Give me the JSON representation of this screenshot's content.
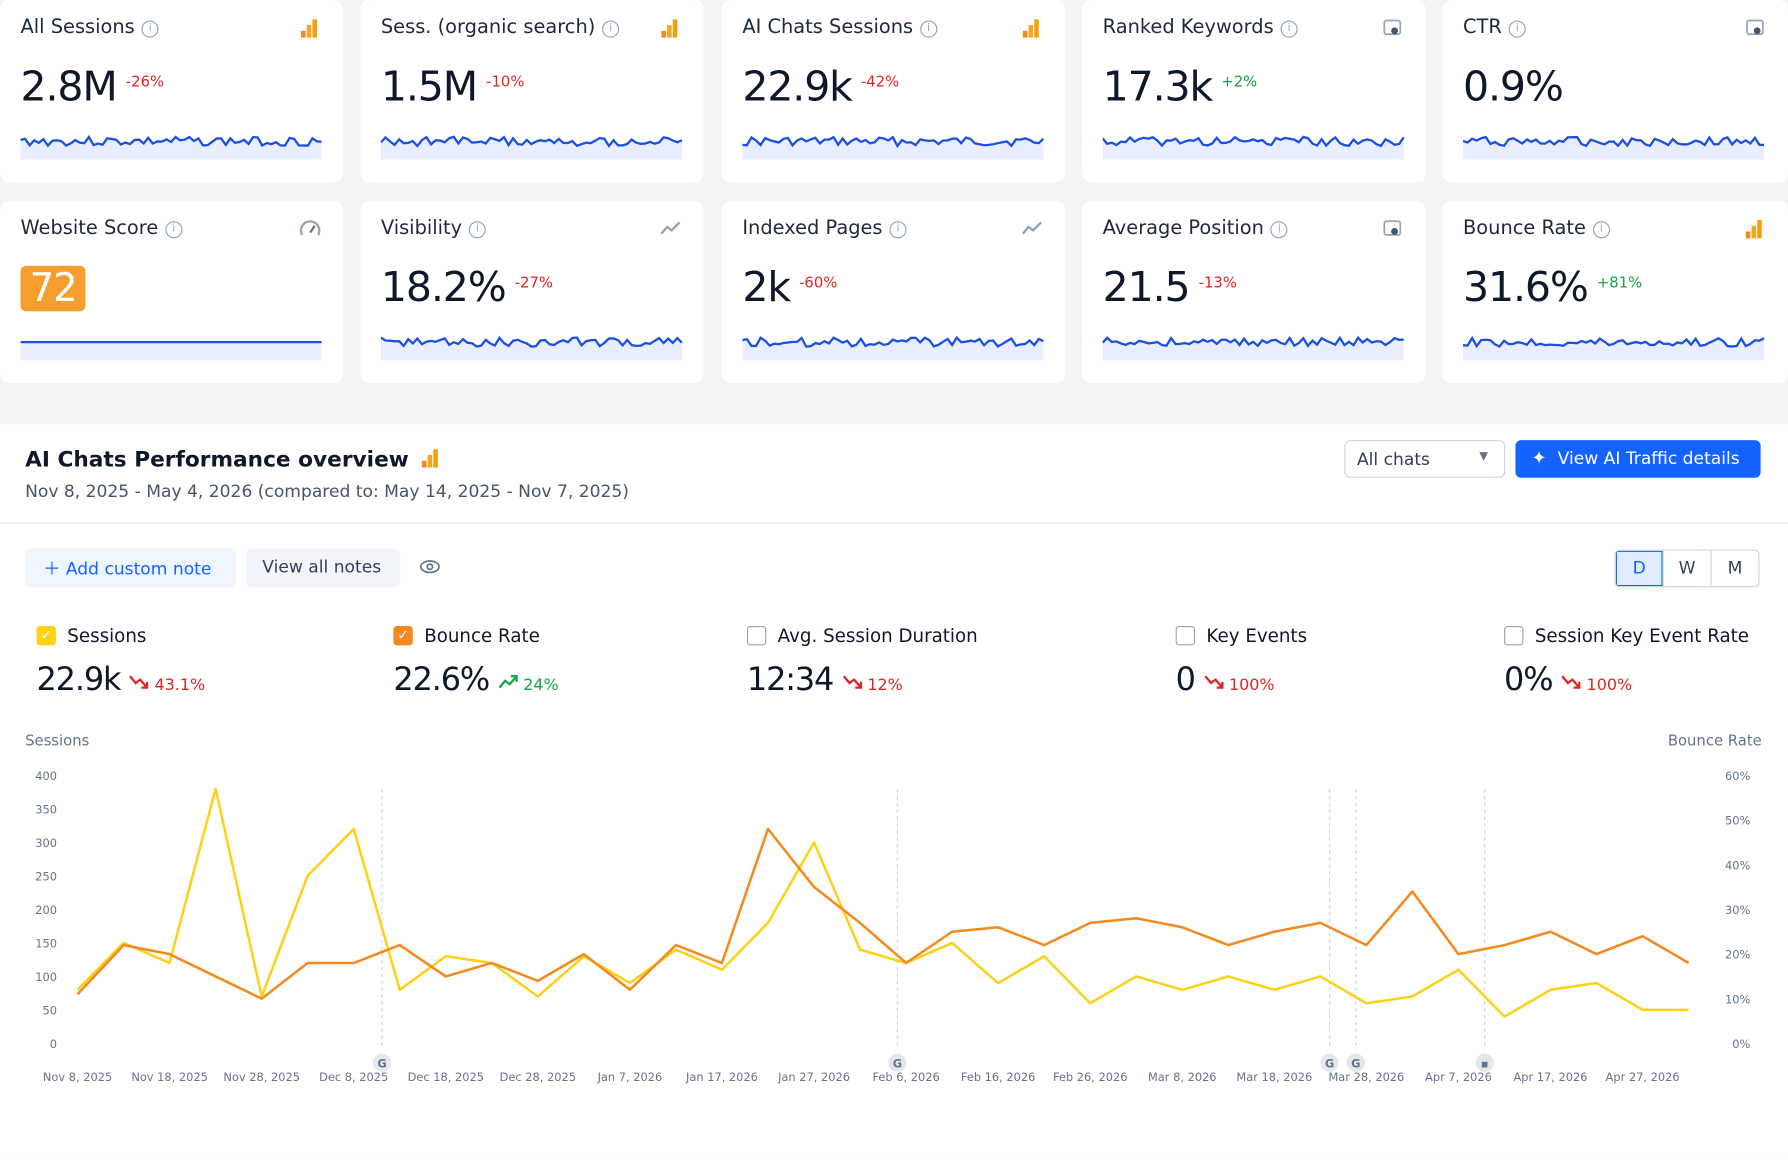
{
  "metric_cards": [
    {
      "title": "All Sessions",
      "value": "2.8M",
      "change": "-26%",
      "icon": "bars"
    },
    {
      "title": "Sess. (organic search)",
      "value": "1.5M",
      "change": "-10%",
      "icon": "bars"
    },
    {
      "title": "AI Chats Sessions",
      "value": "22.9k",
      "change": "-42%",
      "icon": "bars"
    },
    {
      "title": "Ranked Keywords",
      "value": "17.3k",
      "change": "+2%",
      "icon": "gsc"
    },
    {
      "title": "CTR",
      "value": "0.9%",
      "icon": "gsc"
    },
    {
      "title": "Website Score",
      "value": "72",
      "badge": true,
      "icon": "gauge"
    },
    {
      "title": "Visibility",
      "value": "18.2%",
      "change": "-27%",
      "icon": "trend"
    },
    {
      "title": "Indexed Pages",
      "value": "2k",
      "change": "-60%",
      "icon": "trend"
    },
    {
      "title": "Average Position",
      "value": "21.5",
      "change": "-13%",
      "icon": "gsc"
    },
    {
      "title": "Bounce Rate",
      "value": "31.6%",
      "change": "+81%",
      "icon": "bars"
    }
  ],
  "overview": {
    "title": "AI Chats Performance overview",
    "date_range": "Nov 8, 2025 - May 4, 2026 (compared to: May 14, 2025 - Nov 7, 2025)",
    "filter": "All chats",
    "button": "View AI Traffic details",
    "add_note": "Add custom note",
    "view_notes": "View all notes",
    "periods": [
      "D",
      "W",
      "M"
    ],
    "metrics": [
      {
        "label": "Sessions",
        "value": "22.9k",
        "change": "43.1%",
        "trend": "down",
        "checked": true,
        "color": "#fcd116"
      },
      {
        "label": "Bounce Rate",
        "value": "22.6%",
        "change": "24%",
        "trend": "up",
        "checked": true,
        "color": "#f5891e"
      },
      {
        "label": "Avg. Session Duration",
        "value": "12:34",
        "change": "12%",
        "trend": "down",
        "checked": false
      },
      {
        "label": "Key Events",
        "value": "0",
        "change": "100%",
        "trend": "down",
        "checked": false
      },
      {
        "label": "Session Key Event Rate",
        "value": "0%",
        "change": "100%",
        "trend": "down",
        "checked": false
      }
    ]
  },
  "chart_data": {
    "type": "line",
    "y_label": "Sessions",
    "y2_label": "Bounce Rate",
    "x": [
      "Nov 8, 2025",
      "Nov 13, 2025",
      "Nov 18, 2025",
      "Nov 23, 2025",
      "Nov 28, 2025",
      "Dec 3, 2025",
      "Dec 8, 2025",
      "Dec 13, 2025",
      "Dec 18, 2025",
      "Dec 23, 2025",
      "Dec 28, 2025",
      "Jan 2, 2026",
      "Jan 7, 2026",
      "Jan 12, 2026",
      "Jan 17, 2026",
      "Jan 22, 2026",
      "Jan 27, 2026",
      "Feb 1, 2026",
      "Feb 6, 2026",
      "Feb 11, 2026",
      "Feb 16, 2026",
      "Feb 21, 2026",
      "Feb 26, 2026",
      "Mar 3, 2026",
      "Mar 8, 2026",
      "Mar 13, 2026",
      "Mar 18, 2026",
      "Mar 23, 2026",
      "Mar 28, 2026",
      "Apr 2, 2026",
      "Apr 7, 2026",
      "Apr 12, 2026",
      "Apr 17, 2026",
      "Apr 22, 2026",
      "Apr 27, 2026",
      "May 2, 2026"
    ],
    "xlim": [
      "Nov 8, 2025",
      "May 4, 2026"
    ],
    "xticks": [
      "Nov 8, 2025",
      "Nov 18, 2025",
      "Nov 28, 2025",
      "Dec 8, 2025",
      "Dec 18, 2025",
      "Dec 28, 2025",
      "Jan 7, 2026",
      "Jan 17, 2026",
      "Jan 27, 2026",
      "Feb 6, 2026",
      "Feb 16, 2026",
      "Feb 26, 2026",
      "Mar 8, 2026",
      "Mar 18, 2026",
      "Mar 28, 2026",
      "Apr 7, 2026",
      "Apr 17, 2026",
      "Apr 27, 2026"
    ],
    "ylim": [
      0,
      400
    ],
    "yticks": [
      0,
      50,
      100,
      150,
      200,
      250,
      300,
      350,
      400
    ],
    "y2lim": [
      0,
      60
    ],
    "y2ticks": [
      {
        "value": 0,
        "label": "0%"
      },
      {
        "value": 10,
        "label": "10%"
      },
      {
        "value": 20,
        "label": "20%"
      },
      {
        "value": 30,
        "label": "30%"
      },
      {
        "value": 40,
        "label": "40%"
      },
      {
        "value": 50,
        "label": "50%"
      },
      {
        "value": 60,
        "label": "60%"
      }
    ],
    "series": [
      {
        "name": "Sessions",
        "color": "#fcd116",
        "values": [
          80,
          150,
          120,
          380,
          70,
          250,
          320,
          80,
          130,
          120,
          70,
          130,
          90,
          140,
          110,
          180,
          300,
          140,
          120,
          150,
          90,
          130,
          60,
          100,
          80,
          100,
          80,
          100,
          60,
          70,
          110,
          40,
          80,
          90,
          50,
          50
        ]
      },
      {
        "name": "Bounce Rate",
        "color": "#f5891e",
        "axis": "y2",
        "values": [
          11,
          22,
          20,
          15,
          10,
          18,
          18,
          22,
          15,
          18,
          14,
          20,
          12,
          22,
          18,
          48,
          35,
          27,
          18,
          25,
          26,
          22,
          27,
          28,
          26,
          22,
          25,
          27,
          22,
          34,
          20,
          22,
          25,
          20,
          24,
          18
        ]
      }
    ]
  }
}
